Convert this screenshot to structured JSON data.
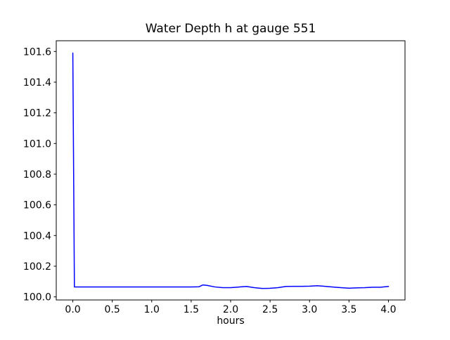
{
  "chart_data": {
    "type": "line",
    "title": "Water Depth h at gauge 551",
    "xlabel": "hours",
    "ylabel": "",
    "xlim": [
      -0.21,
      4.21
    ],
    "ylim": [
      99.98,
      101.67
    ],
    "xticks": [
      0.0,
      0.5,
      1.0,
      1.5,
      2.0,
      2.5,
      3.0,
      3.5,
      4.0
    ],
    "xtick_labels": [
      "0.0",
      "0.5",
      "1.0",
      "1.5",
      "2.0",
      "2.5",
      "3.0",
      "3.5",
      "4.0"
    ],
    "yticks": [
      100.0,
      100.2,
      100.4,
      100.6,
      100.8,
      101.0,
      101.2,
      101.4,
      101.6
    ],
    "ytick_labels": [
      "100.0",
      "100.2",
      "100.4",
      "100.6",
      "100.8",
      "101.0",
      "101.2",
      "101.4",
      "101.6"
    ],
    "grid": false,
    "legend": "none",
    "line_color": "#0000ff",
    "line_width": 1.5,
    "series": [
      {
        "name": "water depth h",
        "x": [
          0,
          0.02,
          0.1,
          0.2,
          0.3,
          0.4,
          0.5,
          0.6,
          0.7,
          0.8,
          0.9,
          1.0,
          1.1,
          1.2,
          1.3,
          1.4,
          1.5,
          1.6,
          1.65,
          1.7,
          1.8,
          1.9,
          2.0,
          2.1,
          2.2,
          2.3,
          2.4,
          2.5,
          2.6,
          2.7,
          2.8,
          2.9,
          3.0,
          3.1,
          3.2,
          3.3,
          3.4,
          3.5,
          3.6,
          3.7,
          3.8,
          3.9,
          4.0
        ],
        "y": [
          101.59,
          100.065,
          100.065,
          100.065,
          100.065,
          100.065,
          100.065,
          100.065,
          100.065,
          100.065,
          100.065,
          100.065,
          100.065,
          100.065,
          100.065,
          100.065,
          100.065,
          100.066,
          100.078,
          100.075,
          100.065,
          100.06,
          100.06,
          100.064,
          100.068,
          100.06,
          100.055,
          100.056,
          100.06,
          100.068,
          100.069,
          100.069,
          100.07,
          100.073,
          100.069,
          100.064,
          100.06,
          100.057,
          100.059,
          100.06,
          100.063,
          100.063,
          100.068
        ]
      }
    ]
  }
}
